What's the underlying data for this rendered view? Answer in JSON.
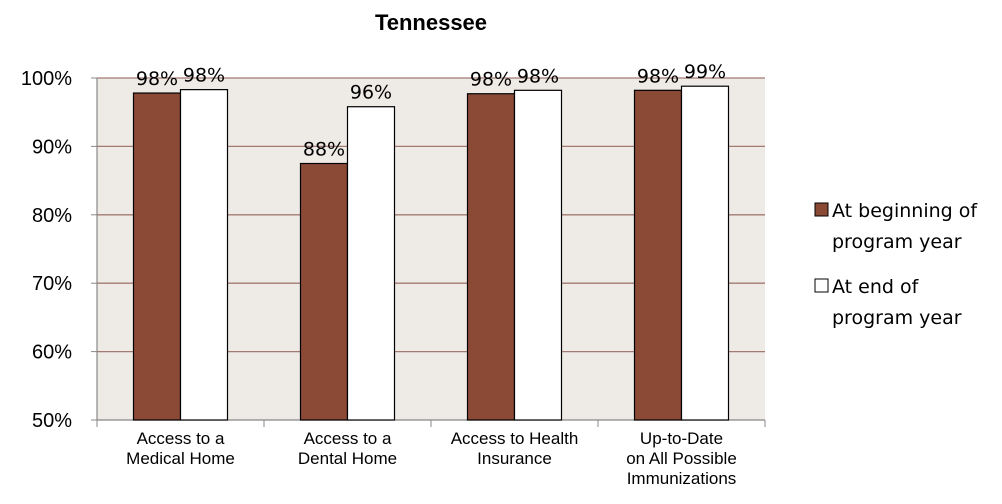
{
  "chart_data": {
    "type": "bar",
    "title": "Tennessee",
    "categories": [
      [
        "Access to a",
        "Medical Home"
      ],
      [
        "Access to a",
        "Dental Home"
      ],
      [
        "Access to Health",
        "Insurance"
      ],
      [
        "Up-to-Date",
        "on All Possible",
        "Immunizations"
      ]
    ],
    "series": [
      {
        "name": [
          "At beginning of",
          "program year"
        ],
        "values": [
          97.8,
          87.5,
          97.7,
          98.2
        ],
        "labels": [
          "98%",
          "88%",
          "98%",
          "98%"
        ],
        "color": "#8B4A35"
      },
      {
        "name": [
          "At end of",
          "program year"
        ],
        "values": [
          98.3,
          95.8,
          98.2,
          98.8
        ],
        "labels": [
          "98%",
          "96%",
          "98%",
          "99%"
        ],
        "color": "#FFFFFF"
      }
    ],
    "ylim": [
      50,
      100
    ],
    "yticks": [
      "50%",
      "60%",
      "70%",
      "80%",
      "90%",
      "100%"
    ],
    "plot_background": "#EEEAE6",
    "gridline_color": "#A27A72",
    "grid": true,
    "legend_position": "right"
  }
}
